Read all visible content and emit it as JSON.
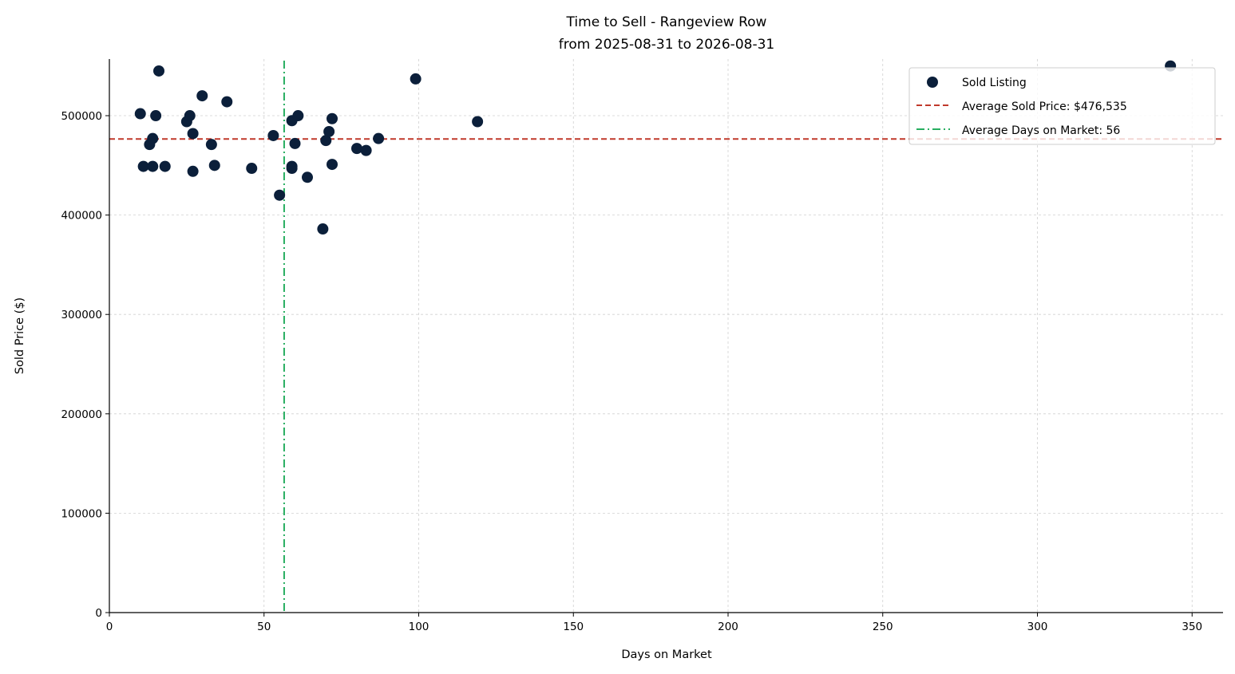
{
  "chart_data": {
    "type": "scatter",
    "title": "Time to Sell - Rangeview Row",
    "subtitle": "from 2025-08-31 to 2026-08-31",
    "xlabel": "Days on Market",
    "ylabel": "Sold Price ($)",
    "xlim": [
      0,
      360
    ],
    "ylim": [
      0,
      557000
    ],
    "xticks": [
      0,
      50,
      100,
      150,
      200,
      250,
      300,
      350
    ],
    "yticks": [
      0,
      100000,
      200000,
      300000,
      400000,
      500000
    ],
    "xtick_labels": [
      "0",
      "50",
      "100",
      "150",
      "200",
      "250",
      "300",
      "350"
    ],
    "ytick_labels": [
      "0",
      "100000",
      "200000",
      "300000",
      "400000",
      "500000"
    ],
    "grid": true,
    "legend_position": "top-right",
    "colors": {
      "points": "#0b1f3a",
      "avg_price_line": "#c0392b",
      "avg_days_line": "#27ae60"
    },
    "series": [
      {
        "name": "Sold Listing",
        "points": [
          [
            10,
            502000
          ],
          [
            11,
            449000
          ],
          [
            13,
            471000
          ],
          [
            14,
            477000
          ],
          [
            14,
            449000
          ],
          [
            15,
            500000
          ],
          [
            16,
            545000
          ],
          [
            18,
            449000
          ],
          [
            25,
            494000
          ],
          [
            26,
            500000
          ],
          [
            27,
            482000
          ],
          [
            27,
            444000
          ],
          [
            30,
            520000
          ],
          [
            33,
            471000
          ],
          [
            34,
            450000
          ],
          [
            38,
            514000
          ],
          [
            46,
            447000
          ],
          [
            53,
            480000
          ],
          [
            55,
            420000
          ],
          [
            59,
            495000
          ],
          [
            59,
            449000
          ],
          [
            59,
            447000
          ],
          [
            60,
            472000
          ],
          [
            61,
            500000
          ],
          [
            64,
            438000
          ],
          [
            69,
            386000
          ],
          [
            70,
            475000
          ],
          [
            71,
            484000
          ],
          [
            72,
            497000
          ],
          [
            72,
            451000
          ],
          [
            80,
            467000
          ],
          [
            83,
            465000
          ],
          [
            87,
            477000
          ],
          [
            99,
            537000
          ],
          [
            119,
            494000
          ],
          [
            343,
            550000
          ]
        ]
      }
    ],
    "reference_lines": [
      {
        "name": "Average Sold Price: $476,535",
        "orientation": "horizontal",
        "value": 476535,
        "style": "dashed"
      },
      {
        "name": "Average Days on Market: 56",
        "orientation": "vertical",
        "value": 56.5,
        "style": "dashdot"
      }
    ]
  }
}
